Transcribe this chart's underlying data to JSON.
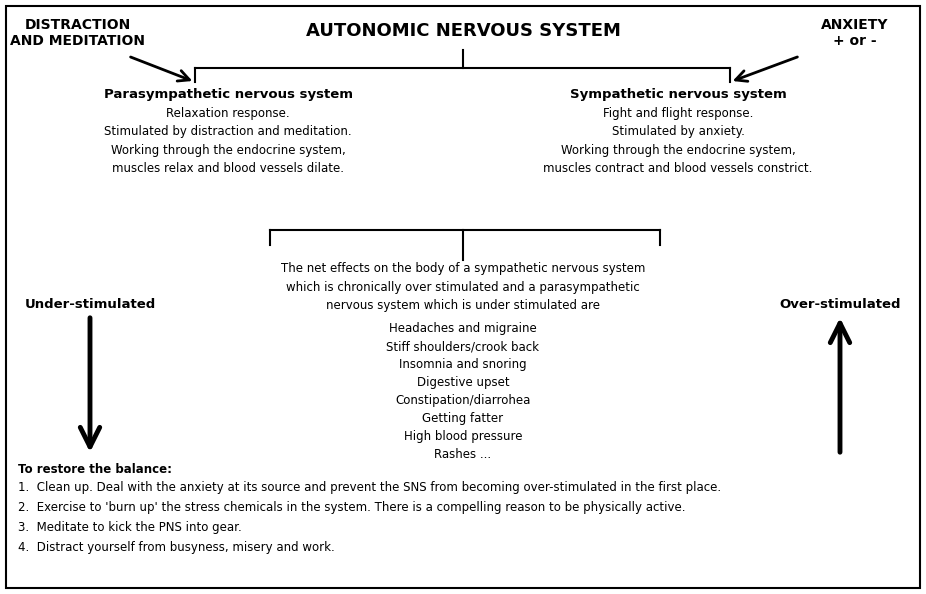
{
  "title": "AUTONOMIC NERVOUS SYSTEM",
  "left_header": "DISTRACTION\nAND MEDITATION",
  "right_header": "ANXIETY\n+ or -",
  "para_title": "Parasympathetic nervous system",
  "para_text": "Relaxation response.\nStimulated by distraction and meditation.\nWorking through the endocrine system,\nmuscles relax and blood vessels dilate.",
  "symp_title": "Sympathetic nervous system",
  "symp_text": "Fight and flight response.\nStimulated by anxiety.\nWorking through the endocrine system,\nmuscles contract and blood vessels constrict.",
  "net_effects_intro": "The net effects on the body of a sympathetic nervous system\nwhich is chronically over stimulated and a parasympathetic\nnervous system which is under stimulated are",
  "symptoms": [
    "Headaches and migraine",
    "Stiff shoulders/crook back",
    "Insomnia and snoring",
    "Digestive upset",
    "Constipation/diarrohea",
    "Getting fatter",
    "High blood pressure",
    "Rashes ..."
  ],
  "under_stimulated": "Under-stimulated",
  "over_stimulated": "Over-stimulated",
  "restore_title": "To restore the balance:",
  "restore_items": [
    "Clean up. Deal with the anxiety at its source and prevent the SNS from becoming over-stimulated in the first place.",
    "Exercise to 'burn up' the stress chemicals in the system. There is a compelling reason to be physically active.",
    "Meditate to kick the PNS into gear.",
    "Distract yourself from busyness, misery and work."
  ],
  "bg_color": "#ffffff",
  "text_color": "#000000",
  "border_color": "#000000",
  "title_fontsize": 13,
  "header_fontsize": 10,
  "section_title_fontsize": 9.5,
  "body_fontsize": 8.5,
  "restore_fontsize": 8.5
}
